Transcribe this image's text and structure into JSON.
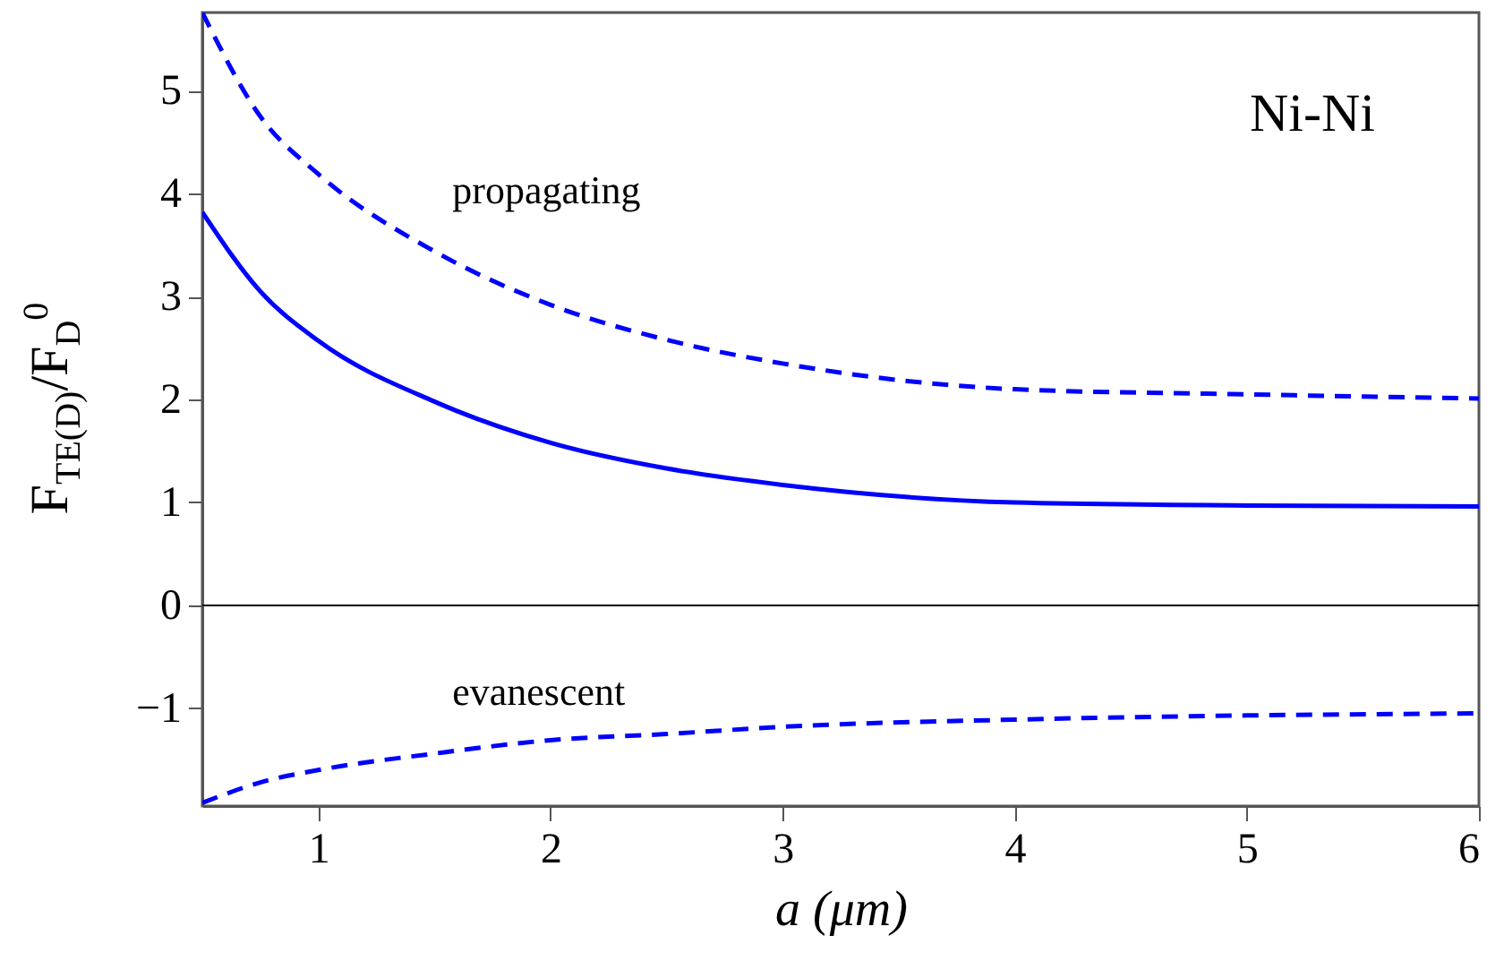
{
  "chart_data": {
    "type": "line",
    "xlabel": "a (μm)",
    "ylabel": "F$_{TE(D)}$/F$_{D}$$^{0}$",
    "x": [
      0.5,
      0.75,
      1,
      1.5,
      2,
      2.5,
      3,
      4,
      5,
      6
    ],
    "series": [
      {
        "name": "propagating",
        "color": "#0000ff",
        "line_style": "dashed",
        "values": [
          5.76,
          4.75,
          4.19,
          3.44,
          2.92,
          2.58,
          2.35,
          2.1,
          2.05,
          2.01
        ]
      },
      {
        "color": "#0000ff",
        "line_style": "solid",
        "values": [
          3.82,
          3.05,
          2.57,
          1.98,
          1.58,
          1.33,
          1.17,
          1.0,
          0.97,
          0.96
        ]
      },
      {
        "name": "evanescent",
        "color": "#0000ff",
        "line_style": "dashed",
        "values": [
          -1.92,
          -1.72,
          -1.6,
          -1.44,
          -1.31,
          -1.25,
          -1.18,
          -1.11,
          -1.07,
          -1.05
        ]
      }
    ],
    "xlim": [
      0.5,
      6
    ],
    "xticks": [
      1,
      2,
      3,
      4,
      5,
      6
    ],
    "ylim": [
      -1.95,
      5.76
    ],
    "yticks": [
      -1,
      0,
      1,
      2,
      3,
      4,
      5
    ],
    "ref_lines": [
      {
        "axis": "y",
        "value": 0,
        "color": "#000000"
      }
    ],
    "annotations": [
      "Ni-Ni"
    ],
    "grid": false
  }
}
